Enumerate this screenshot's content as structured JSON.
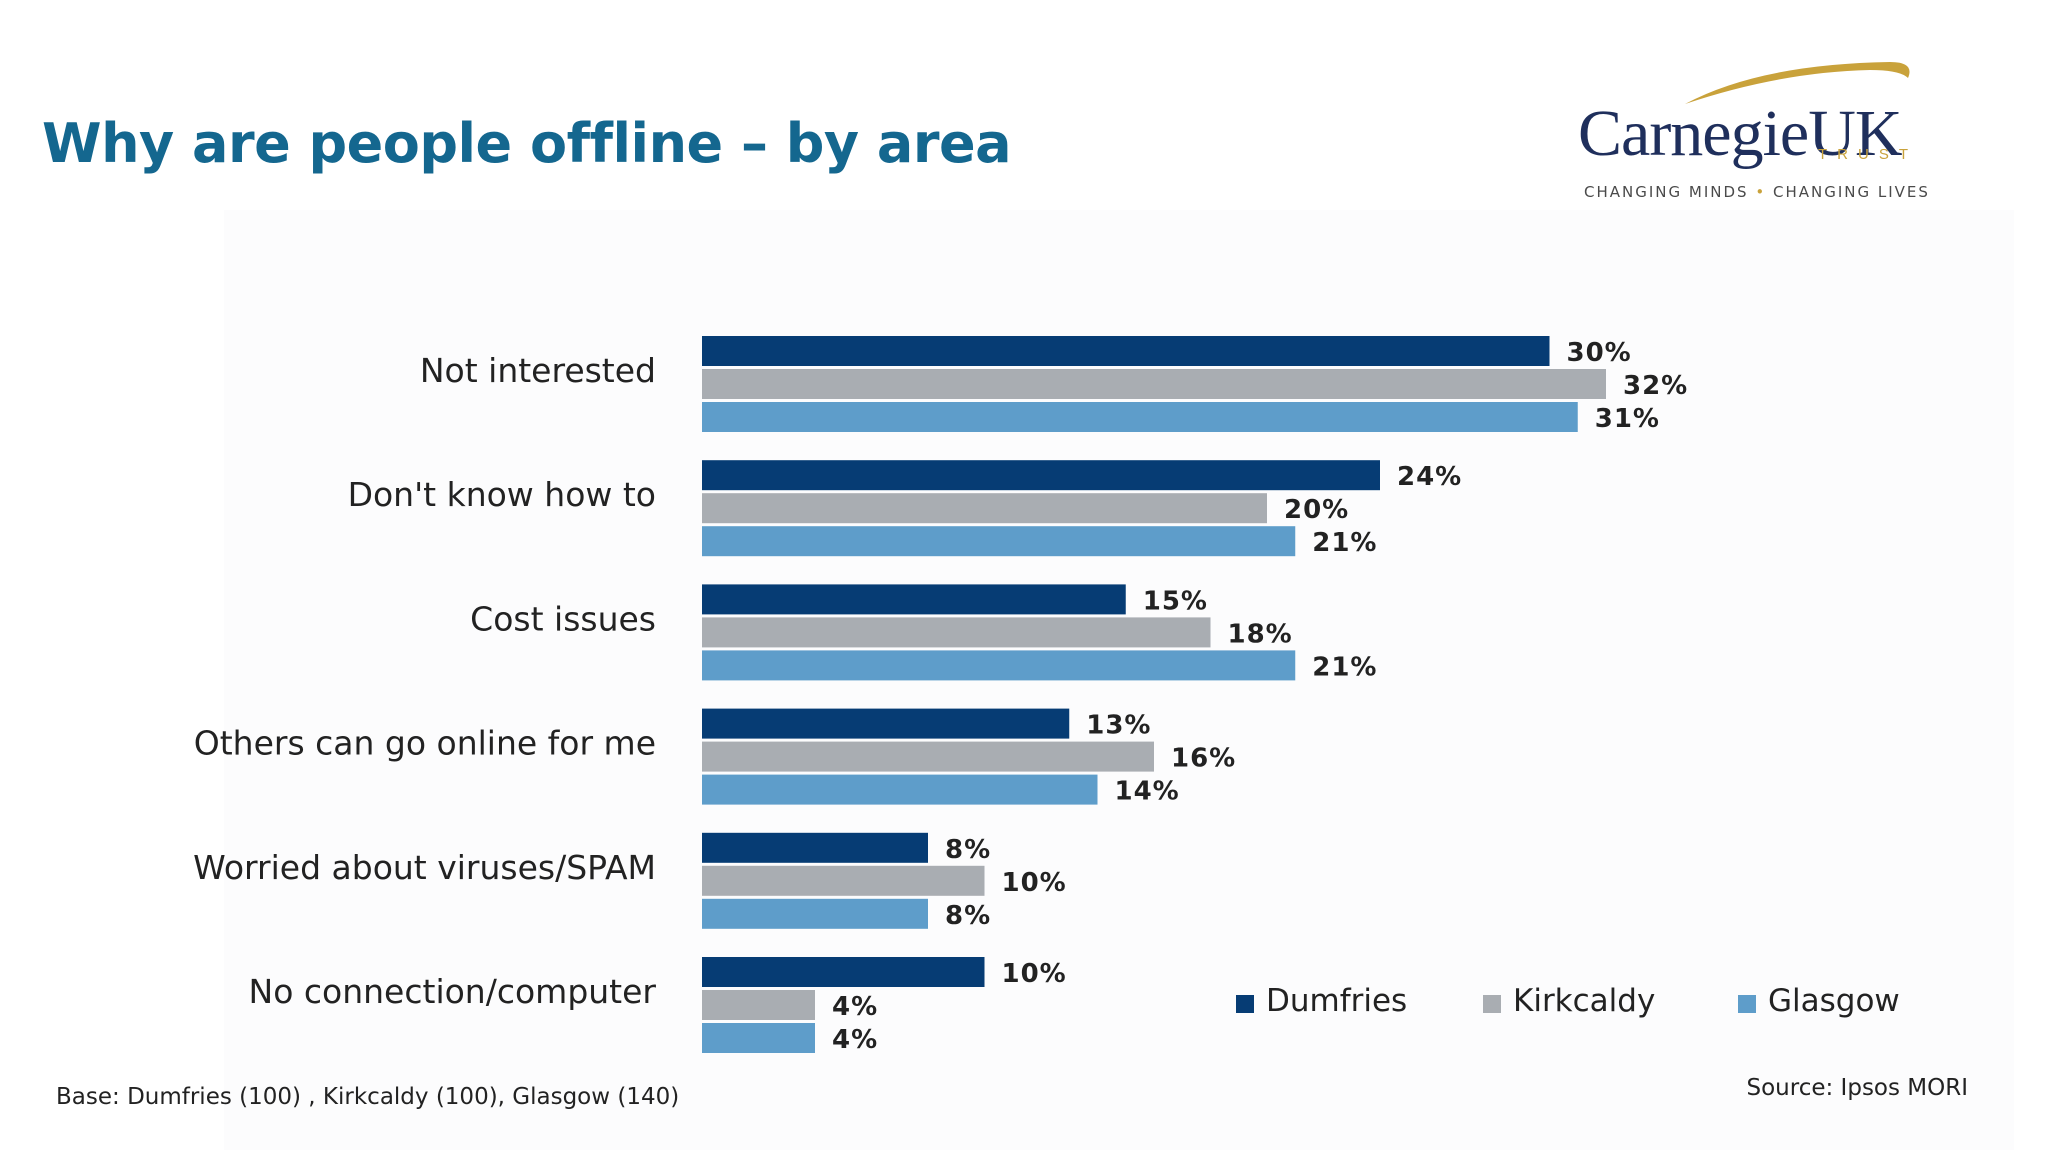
{
  "slide": {
    "title": "Why are people offline – by area",
    "base_note": "Base: Dumfries (100) , Kirkcaldy (100), Glasgow (140)",
    "source_note": "Source: Ipsos MORI"
  },
  "logo": {
    "wordmark": "CarnegieUK",
    "trust": "TRUST",
    "tagline_left": "CHANGING MINDS",
    "tagline_sep": "•",
    "tagline_right": "CHANGING LIVES",
    "colors": {
      "text": "#1f2f5c",
      "swoosh": "#c9a23b"
    }
  },
  "chart_data": {
    "type": "bar",
    "orientation": "horizontal",
    "categories": [
      "Not interested",
      "Don't know how to",
      "Cost issues",
      "Others can go online for me",
      "Worried  about viruses/SPAM",
      "No connection/computer"
    ],
    "series": [
      {
        "name": "Dumfries",
        "color": "#063c74",
        "values": [
          30,
          24,
          15,
          13,
          8,
          10
        ],
        "labels": [
          "30%",
          "24%",
          "15%",
          "13%",
          "8%",
          "10%"
        ]
      },
      {
        "name": "Kirkcaldy",
        "color": "#a9adb2",
        "values": [
          32,
          20,
          18,
          16,
          10,
          4
        ],
        "labels": [
          "32%",
          "20%",
          "18%",
          "16%",
          "10%",
          "4%"
        ]
      },
      {
        "name": "Glasgow",
        "color": "#5e9dca",
        "values": [
          31,
          21,
          21,
          14,
          8,
          4
        ],
        "labels": [
          "31%",
          "21%",
          "21%",
          "14%",
          "8%",
          "4%"
        ]
      }
    ],
    "unit": "%",
    "xlim": [
      0,
      32
    ],
    "grid": false,
    "axis_visible": false,
    "legend_position": "bottom-right"
  }
}
